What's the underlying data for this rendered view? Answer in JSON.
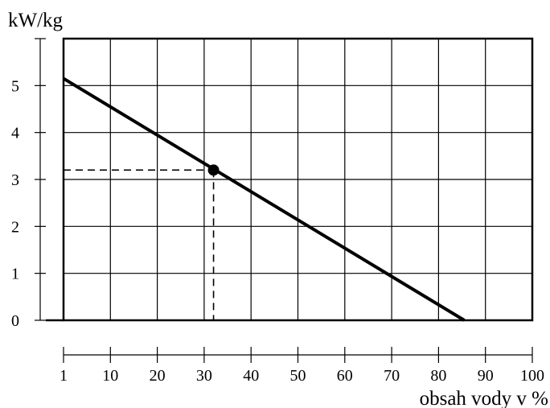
{
  "chart_data": {
    "type": "line",
    "ylabel": "kW/kg",
    "xlabel": "obsah vody v %",
    "xlim": [
      0,
      100
    ],
    "ylim": [
      0,
      6
    ],
    "x_ticks": [
      1,
      10,
      20,
      30,
      40,
      50,
      60,
      70,
      80,
      90,
      100
    ],
    "y_ticks": [
      0,
      1,
      2,
      3,
      4,
      5
    ],
    "grid": true,
    "series": [
      {
        "x": [
          0,
          85.5
        ],
        "y": [
          5.15,
          0
        ]
      }
    ],
    "highlight_point": {
      "x": 32,
      "y": 3.2
    },
    "colors": {
      "line": "#000000",
      "grid": "#000000",
      "background": "#ffffff"
    }
  }
}
